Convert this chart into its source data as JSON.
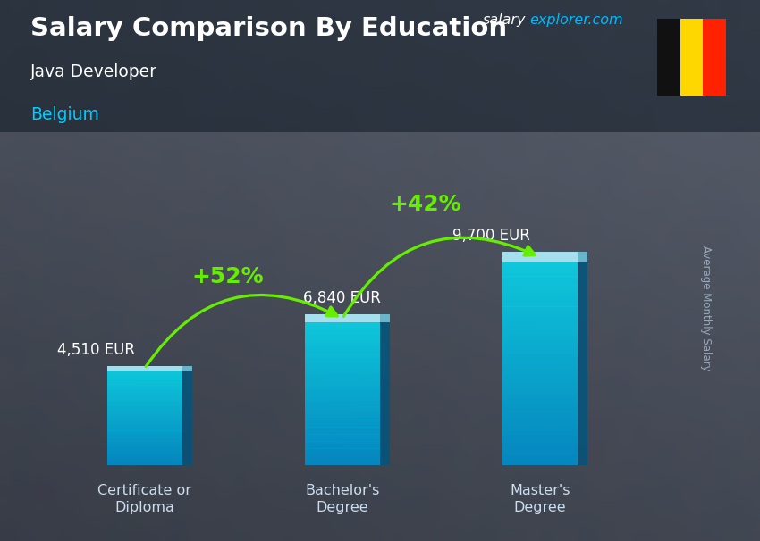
{
  "title_main": "Salary Comparison By Education",
  "title_sub": "Java Developer",
  "title_country": "Belgium",
  "watermark_salary": "salary",
  "watermark_explorer": "explorer.com",
  "ylabel": "Average Monthly Salary",
  "categories": [
    "Certificate or\nDiploma",
    "Bachelor's\nDegree",
    "Master's\nDegree"
  ],
  "values": [
    4510,
    6840,
    9700
  ],
  "labels": [
    "4,510 EUR",
    "6,840 EUR",
    "9,700 EUR"
  ],
  "pct_arrows": [
    {
      "text": "+52%",
      "from_bar": 0,
      "to_bar": 1
    },
    {
      "text": "+42%",
      "from_bar": 1,
      "to_bar": 2
    }
  ],
  "bar_color_face": "#00c8f0",
  "bar_color_top": "#80e8ff",
  "bar_color_side": "#0077aa",
  "arrow_color": "#66ee00",
  "pct_color": "#66ee00",
  "label_color": "#ffffff",
  "title_color": "#ffffff",
  "sub_color": "#ffffff",
  "country_color": "#00ccff",
  "salary_color": "#ffffff",
  "explorer_color": "#00bbff",
  "flag_black": "#111111",
  "flag_yellow": "#FFD700",
  "flag_red": "#FF2200",
  "bar_width": 0.38,
  "bar_positions": [
    1.0,
    2.0,
    3.0
  ],
  "figsize": [
    8.5,
    6.06
  ],
  "dpi": 100
}
